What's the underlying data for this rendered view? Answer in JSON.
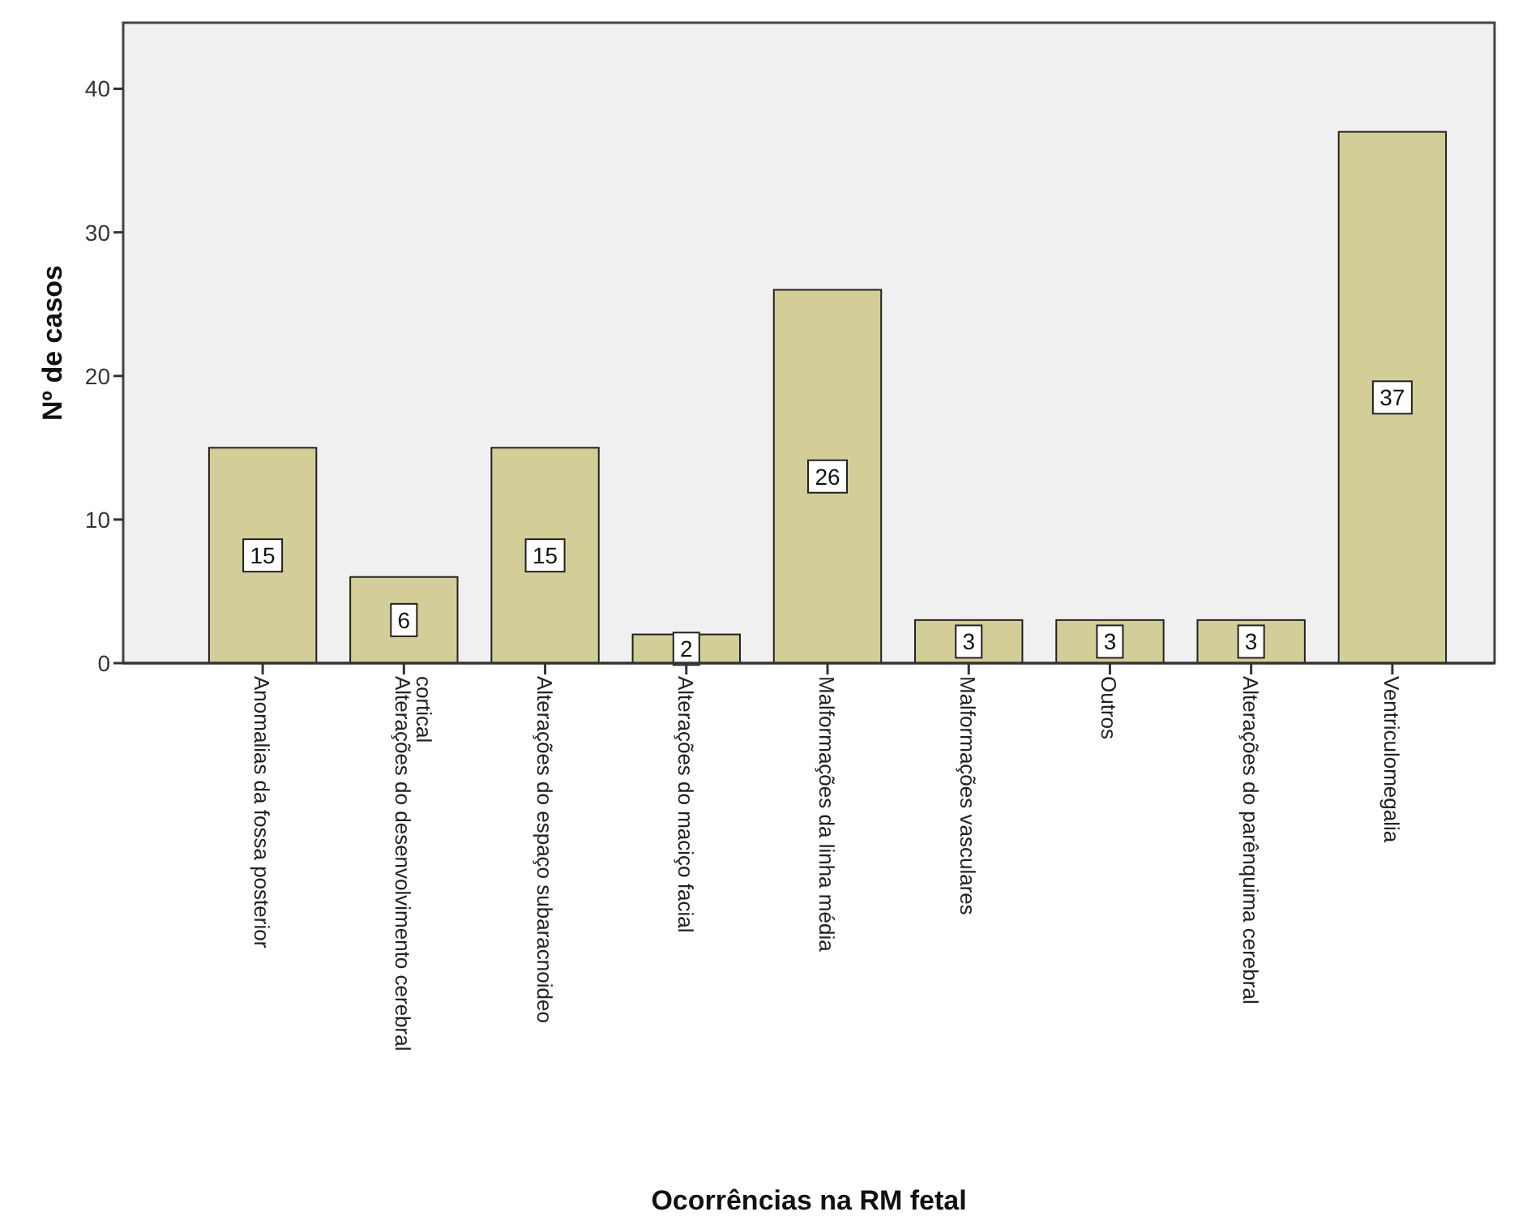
{
  "chart_data": {
    "type": "bar",
    "xlabel": "Ocorrências na RM fetal",
    "ylabel": "Nº de casos",
    "categories": [
      "Anomalias da fossa posterior",
      "Alterações do desenvolvimento cerebral cortical",
      "Alterações do espaço subaracnoideo",
      "Alterações do maciço facial",
      "Malformações da linha média",
      "Malformações vasculares",
      "Outros",
      "Alterações do parênquima cerebral",
      "Ventriculomegalia"
    ],
    "values": [
      15,
      6,
      15,
      2,
      26,
      3,
      3,
      3,
      37
    ],
    "color": "#d3ce97",
    "ylim": [
      0,
      44.6
    ],
    "yticks": [
      0,
      10,
      20,
      30,
      40
    ],
    "data_labels": true
  }
}
